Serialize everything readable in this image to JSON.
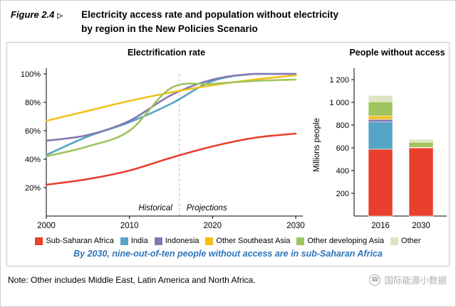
{
  "figure": {
    "label": "Figure 2.4",
    "arrow": "▷",
    "title_line1": "Electricity access rate and population without electricity",
    "title_line2": "by region in the New Policies Scenario"
  },
  "colors": {
    "Sub-Saharan Africa": "#e8402d",
    "India": "#55a5c6",
    "Indonesia": "#8478b3",
    "Other Southeast Asia": "#f2c11b",
    "Other developing Asia": "#a0c45f",
    "Other": "#dde4c3",
    "caption_blue": "#2d74b8",
    "annotation_gray": "#a6a6a6",
    "divider_gray": "#bfbfbf",
    "axis_black": "#000000"
  },
  "chart_data": [
    {
      "type": "line",
      "title": "Electrification rate",
      "x": [
        2000,
        2005,
        2010,
        2015,
        2020,
        2025,
        2030
      ],
      "xlim": [
        2000,
        2030
      ],
      "ylim": [
        0,
        100
      ],
      "series": [
        {
          "name": "Sub-Saharan Africa",
          "values": [
            22,
            26,
            32,
            41,
            49,
            55,
            58
          ]
        },
        {
          "name": "India",
          "values": [
            43,
            56,
            66,
            79,
            95,
            100,
            100
          ]
        },
        {
          "name": "Indonesia",
          "values": [
            53,
            57,
            67,
            85,
            96,
            100,
            100
          ]
        },
        {
          "name": "Other Southeast Asia",
          "values": [
            67,
            74,
            81,
            87,
            92,
            96,
            99
          ]
        },
        {
          "name": "Other developing Asia",
          "values": [
            42,
            49,
            60,
            90,
            93,
            95,
            96
          ]
        }
      ],
      "ytick_values": [
        20,
        40,
        60,
        80,
        100
      ],
      "ytick_labels": [
        "20%",
        "40%",
        "60%",
        "80%",
        "100%"
      ],
      "xtick_values": [
        2000,
        2010,
        2020,
        2030
      ],
      "xtick_labels": [
        "2000",
        "2010",
        "2020",
        "2030"
      ],
      "divider_x": 2016,
      "annotations": {
        "historical": "Historical",
        "projections": "Projections"
      },
      "legend_position": "bottom",
      "grid": false
    },
    {
      "type": "bar",
      "title": "People without access",
      "ylabel": "Millions  people",
      "categories": [
        "2016",
        "2030"
      ],
      "series": [
        {
          "name": "Sub-Saharan Africa",
          "values": [
            588,
            600
          ]
        },
        {
          "name": "India",
          "values": [
            239,
            0
          ]
        },
        {
          "name": "Indonesia",
          "values": [
            23,
            0
          ]
        },
        {
          "name": "Other Southeast Asia",
          "values": [
            30,
            5
          ]
        },
        {
          "name": "Other developing Asia",
          "values": [
            125,
            45
          ]
        },
        {
          "name": "Other",
          "values": [
            55,
            25
          ]
        }
      ],
      "totals": [
        1060,
        675
      ],
      "ylim": [
        0,
        1250
      ],
      "ytick_values": [
        200,
        400,
        600,
        800,
        1000,
        1200
      ],
      "ytick_labels": [
        "200",
        "400",
        "600",
        "800",
        "1 000",
        "1 200"
      ],
      "grid": false
    }
  ],
  "legend": [
    "Sub-Saharan Africa",
    "India",
    "Indonesia",
    "Other Southeast Asia",
    "Other developing Asia",
    "Other"
  ],
  "caption": {
    "text": "By 2030, nine-out-of-ten people without access are in sub-Saharan Africa"
  },
  "note": "Note: Other includes Middle East, Latin America and North Africa.",
  "watermark": {
    "icon": "☎",
    "text": "国际能源小数据"
  }
}
